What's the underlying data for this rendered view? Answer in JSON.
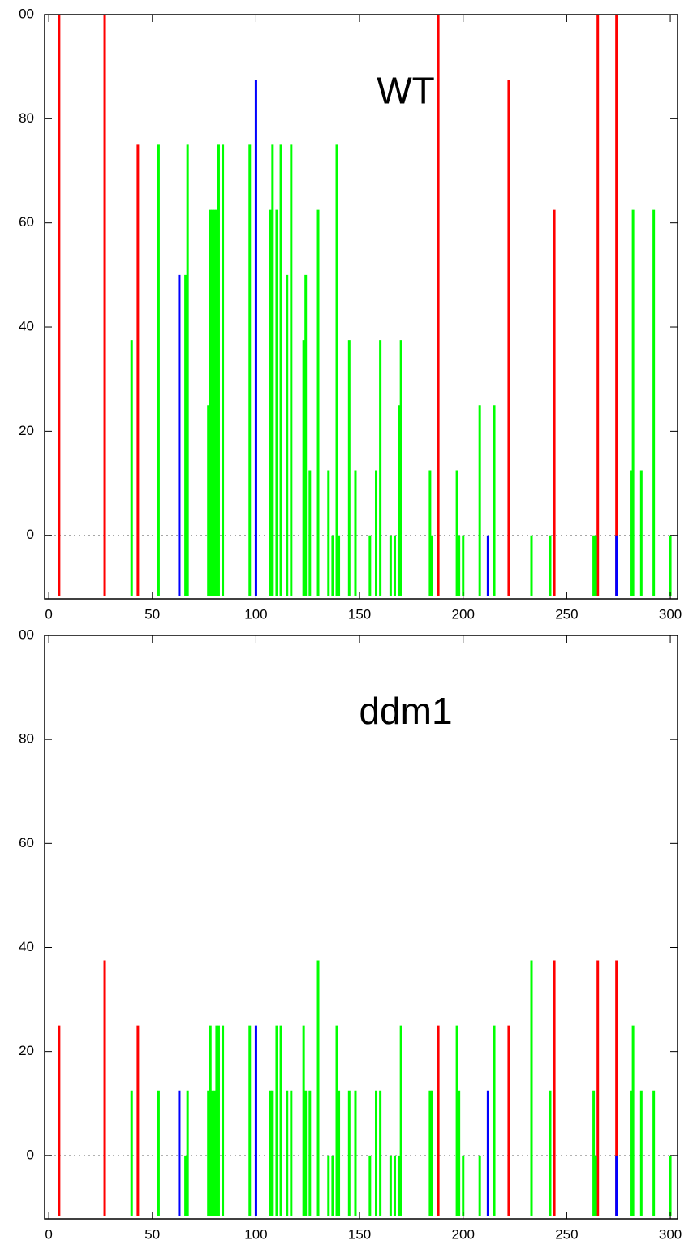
{
  "chart_data": [
    {
      "type": "bar",
      "title": "WT",
      "xlim": [
        -2,
        303.5
      ],
      "xticks": [
        0,
        50,
        100,
        150,
        200,
        250,
        300
      ],
      "ylim": [
        -12.2,
        100
      ],
      "yticks": [
        {
          "value": 100,
          "label": "00"
        },
        80,
        60,
        40,
        20,
        0
      ],
      "series": [
        {
          "color": "#ff0000",
          "x": [
            5,
            27,
            43,
            188,
            222,
            244,
            265,
            274
          ],
          "values": [
            100,
            100,
            75,
            100,
            87.5,
            62.5,
            100,
            100
          ]
        },
        {
          "color": "#0000ff",
          "x": [
            63,
            100,
            212,
            274
          ],
          "values": [
            50,
            87.5,
            0,
            0
          ]
        },
        {
          "color": "#00ff00",
          "x": [
            40,
            53,
            66,
            67,
            77,
            78,
            79,
            80,
            81,
            82,
            84,
            97,
            107,
            108,
            110,
            112,
            115,
            117,
            123,
            124,
            126,
            130,
            135,
            137,
            139,
            140,
            145,
            148,
            155,
            158,
            160,
            165,
            167,
            169,
            170,
            184,
            185,
            197,
            198,
            200,
            208,
            215,
            233,
            242,
            263,
            264,
            281,
            282,
            286,
            292,
            300
          ],
          "values": [
            37.5,
            75,
            50,
            75,
            25,
            62.5,
            62.5,
            62.5,
            62.5,
            75,
            75,
            75,
            62.5,
            75,
            62.5,
            75,
            50,
            75,
            37.5,
            50,
            12.5,
            62.5,
            12.5,
            0,
            75,
            0,
            37.5,
            12.5,
            0,
            12.5,
            37.5,
            0,
            0,
            25,
            37.5,
            12.5,
            0,
            12.5,
            0,
            0,
            25,
            25,
            0,
            0,
            0,
            0,
            12.5,
            62.5,
            12.5,
            62.5,
            0
          ]
        }
      ]
    },
    {
      "type": "bar",
      "title": "ddm1",
      "xlim": [
        -2,
        303.5
      ],
      "xticks": [
        0,
        50,
        100,
        150,
        200,
        250,
        300
      ],
      "ylim": [
        -12.2,
        100
      ],
      "yticks": [
        {
          "value": 100,
          "label": "00"
        },
        80,
        60,
        40,
        20,
        0
      ],
      "series": [
        {
          "color": "#ff0000",
          "x": [
            5,
            27,
            43,
            188,
            222,
            244,
            265,
            274
          ],
          "values": [
            25,
            37.5,
            25,
            25,
            25,
            37.5,
            37.5,
            37.5
          ]
        },
        {
          "color": "#0000ff",
          "x": [
            63,
            100,
            212,
            274
          ],
          "values": [
            12.5,
            25,
            12.5,
            0
          ]
        },
        {
          "color": "#00ff00",
          "x": [
            40,
            53,
            66,
            67,
            77,
            78,
            79,
            80,
            81,
            82,
            84,
            97,
            107,
            108,
            110,
            112,
            115,
            117,
            123,
            124,
            126,
            130,
            135,
            137,
            139,
            140,
            145,
            148,
            155,
            158,
            160,
            165,
            167,
            169,
            170,
            184,
            185,
            197,
            198,
            200,
            208,
            215,
            233,
            242,
            263,
            264,
            281,
            282,
            286,
            292,
            300
          ],
          "values": [
            12.5,
            12.5,
            0,
            12.5,
            12.5,
            25,
            12.5,
            12.5,
            25,
            25,
            25,
            25,
            12.5,
            12.5,
            25,
            25,
            12.5,
            12.5,
            25,
            12.5,
            12.5,
            37.5,
            0,
            0,
            25,
            12.5,
            12.5,
            12.5,
            0,
            12.5,
            12.5,
            0,
            0,
            0,
            25,
            12.5,
            12.5,
            25,
            12.5,
            0,
            0,
            25,
            37.5,
            12.5,
            12.5,
            0,
            12.5,
            25,
            12.5,
            12.5,
            0
          ]
        }
      ]
    }
  ]
}
